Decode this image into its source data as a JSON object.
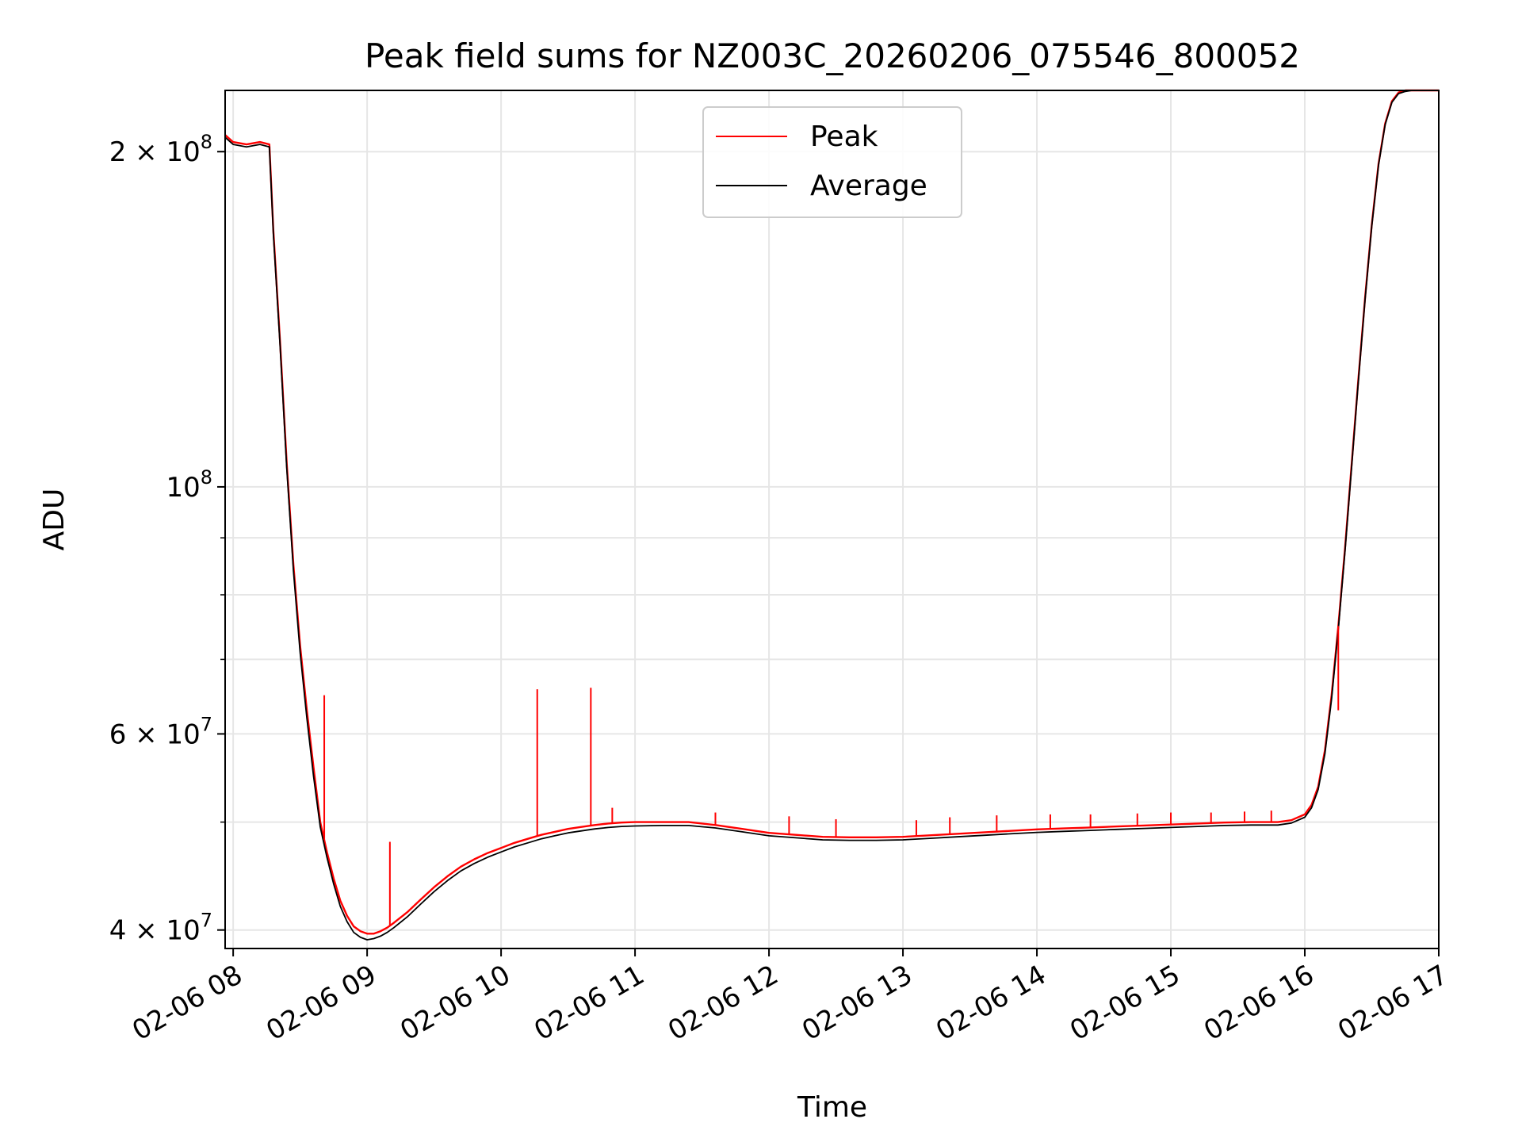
{
  "colors": {
    "peak": "#ff0000",
    "average": "#000000",
    "grid": "#e6e6e6",
    "axis": "#000000"
  },
  "chart_data": {
    "type": "line",
    "title": "Peak field sums for NZ003C_20260206_075546_800052",
    "xlabel": "Time",
    "ylabel": "ADU",
    "yscale": "log",
    "grid": true,
    "legend_position": "top-center",
    "x_unit": "hours since 2026-02-06 00:00",
    "xlim": [
      7.94,
      17.0
    ],
    "ylim": [
      38500000,
      227000000
    ],
    "x_ticks": [
      {
        "value": 8,
        "label": "02-06 08"
      },
      {
        "value": 9,
        "label": "02-06 09"
      },
      {
        "value": 10,
        "label": "02-06 10"
      },
      {
        "value": 11,
        "label": "02-06 11"
      },
      {
        "value": 12,
        "label": "02-06 12"
      },
      {
        "value": 13,
        "label": "02-06 13"
      },
      {
        "value": 14,
        "label": "02-06 14"
      },
      {
        "value": 15,
        "label": "02-06 15"
      },
      {
        "value": 16,
        "label": "02-06 16"
      },
      {
        "value": 17,
        "label": "02-06 17"
      }
    ],
    "y_ticks": [
      {
        "value": 40000000,
        "base": "4 × 10",
        "exp": "7"
      },
      {
        "value": 60000000,
        "base": "6 × 10",
        "exp": "7"
      },
      {
        "value": 100000000,
        "base": "10",
        "exp": "8"
      },
      {
        "value": 200000000,
        "base": "2 × 10",
        "exp": "8"
      }
    ],
    "y_minor_grid": [
      50000000,
      70000000,
      80000000,
      90000000
    ],
    "x": [
      7.94,
      8.0,
      8.1,
      8.2,
      8.27,
      8.3,
      8.35,
      8.4,
      8.45,
      8.5,
      8.55,
      8.6,
      8.65,
      8.7,
      8.75,
      8.8,
      8.85,
      8.9,
      8.95,
      9.0,
      9.05,
      9.1,
      9.15,
      9.2,
      9.3,
      9.4,
      9.5,
      9.6,
      9.7,
      9.8,
      9.9,
      10.0,
      10.1,
      10.2,
      10.3,
      10.4,
      10.5,
      10.6,
      10.7,
      10.8,
      10.9,
      11.0,
      11.2,
      11.4,
      11.6,
      11.8,
      12.0,
      12.2,
      12.4,
      12.6,
      12.8,
      13.0,
      13.2,
      13.4,
      13.6,
      13.8,
      14.0,
      14.2,
      14.4,
      14.6,
      14.8,
      15.0,
      15.2,
      15.4,
      15.6,
      15.8,
      15.9,
      16.0,
      16.05,
      16.1,
      16.15,
      16.2,
      16.25,
      16.3,
      16.35,
      16.4,
      16.45,
      16.5,
      16.55,
      16.6,
      16.65,
      16.7,
      16.75,
      16.8,
      16.85,
      16.9,
      17.0
    ],
    "series": [
      {
        "name": "Peak",
        "values": [
          207000000,
          204000000,
          203000000,
          204000000,
          203000000,
          170000000,
          135000000,
          105000000,
          85000000,
          72000000,
          63000000,
          56000000,
          50000000,
          47000000,
          44500000,
          42500000,
          41200000,
          40300000,
          39900000,
          39700000,
          39700000,
          39900000,
          40200000,
          40600000,
          41500000,
          42600000,
          43700000,
          44700000,
          45600000,
          46300000,
          46900000,
          47400000,
          47900000,
          48300000,
          48700000,
          49000000,
          49300000,
          49500000,
          49700000,
          49850000,
          49950000,
          50000000,
          50000000,
          50000000,
          49700000,
          49300000,
          48900000,
          48700000,
          48500000,
          48450000,
          48450000,
          48500000,
          48650000,
          48800000,
          48950000,
          49100000,
          49250000,
          49350000,
          49450000,
          49550000,
          49650000,
          49750000,
          49850000,
          49950000,
          50000000,
          50000000,
          50200000,
          50800000,
          51800000,
          53800000,
          58000000,
          65000000,
          75000000,
          88000000,
          105000000,
          125000000,
          148000000,
          172000000,
          195000000,
          212000000,
          222000000,
          226000000,
          227000000,
          227000000,
          227000000,
          227000000,
          227000000
        ]
      },
      {
        "name": "Average",
        "values": [
          206000000,
          203000000,
          202000000,
          203000000,
          202000000,
          169000000,
          134000000,
          104000000,
          84000000,
          71000000,
          62000000,
          55000000,
          49500000,
          46500000,
          44000000,
          42000000,
          40700000,
          39800000,
          39400000,
          39200000,
          39300000,
          39500000,
          39800000,
          40200000,
          41100000,
          42200000,
          43300000,
          44300000,
          45200000,
          45900000,
          46500000,
          47000000,
          47500000,
          47900000,
          48300000,
          48600000,
          48900000,
          49100000,
          49300000,
          49450000,
          49550000,
          49600000,
          49650000,
          49650000,
          49400000,
          49000000,
          48600000,
          48400000,
          48200000,
          48150000,
          48150000,
          48200000,
          48350000,
          48500000,
          48650000,
          48800000,
          48950000,
          49050000,
          49150000,
          49250000,
          49350000,
          49450000,
          49550000,
          49650000,
          49700000,
          49700000,
          49900000,
          50500000,
          51500000,
          53500000,
          57600000,
          64500000,
          74500000,
          87500000,
          104500000,
          124500000,
          147500000,
          171500000,
          194500000,
          211500000,
          221500000,
          225500000,
          226500000,
          227000000,
          227000000,
          227000000,
          227000000
        ]
      }
    ],
    "peak_spikes": [
      {
        "x": 8.68,
        "y": 65000000
      },
      {
        "x": 9.17,
        "y": 48000000
      },
      {
        "x": 10.27,
        "y": 65800000
      },
      {
        "x": 10.67,
        "y": 66000000
      },
      {
        "x": 10.83,
        "y": 51500000
      },
      {
        "x": 11.6,
        "y": 51000000
      },
      {
        "x": 12.15,
        "y": 50600000
      },
      {
        "x": 12.5,
        "y": 50300000
      },
      {
        "x": 13.1,
        "y": 50200000
      },
      {
        "x": 13.35,
        "y": 50500000
      },
      {
        "x": 13.7,
        "y": 50700000
      },
      {
        "x": 14.1,
        "y": 50800000
      },
      {
        "x": 14.4,
        "y": 50800000
      },
      {
        "x": 14.75,
        "y": 50900000
      },
      {
        "x": 15.0,
        "y": 51000000
      },
      {
        "x": 15.3,
        "y": 51000000
      },
      {
        "x": 15.55,
        "y": 51100000
      },
      {
        "x": 15.75,
        "y": 51200000
      },
      {
        "x": 16.25,
        "y": 63000000
      }
    ]
  }
}
